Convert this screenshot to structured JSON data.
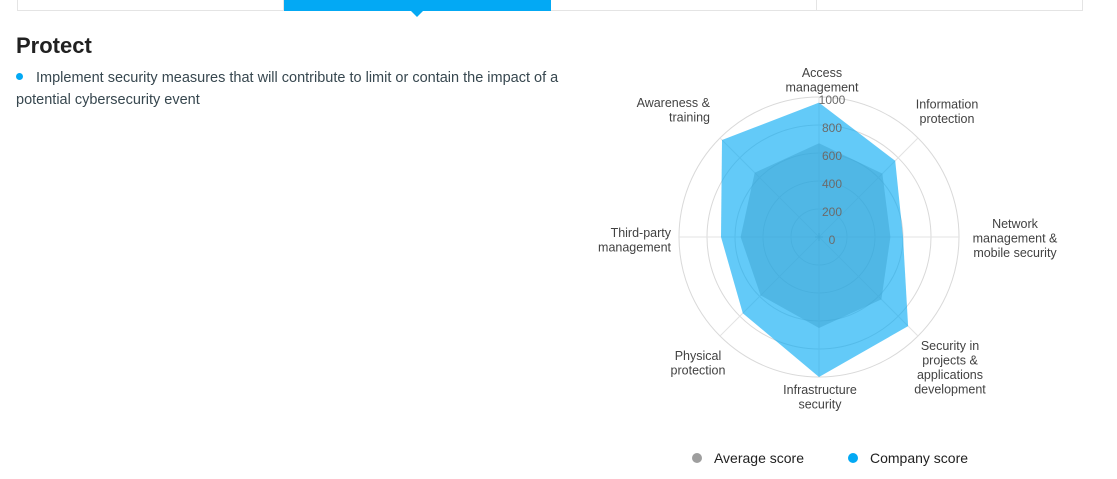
{
  "nav": {
    "tab_count": 4,
    "active_tab_index": 1
  },
  "page": {
    "title": "Protect",
    "description": "Implement security measures that will contribute to limit or contain the impact of a potential cybersecurity event"
  },
  "colors": {
    "accent": "#03a9f4",
    "average_series": "#9e9e9e",
    "company_series": "#03a9f4",
    "grid_line": "#d9d9d9",
    "axis_line": "#e3e3e3",
    "tick_label": "#6b6b6b",
    "category_label": "#424242"
  },
  "chart_data": {
    "type": "radar",
    "title": "",
    "categories": [
      "Access management",
      "Information protection",
      "Network management & mobile security",
      "Security in projects & applications development",
      "Infrastructure security",
      "Physical protection",
      "Third-party management",
      "Awareness & training"
    ],
    "category_label_lines": [
      [
        "Access",
        "management"
      ],
      [
        "Information",
        "protection"
      ],
      [
        "Network",
        "management &",
        "mobile security"
      ],
      [
        "Security in",
        "projects &",
        "applications",
        "development"
      ],
      [
        "Infrastructure",
        "security"
      ],
      [
        "Physical",
        "protection"
      ],
      [
        "Third-party",
        "management"
      ],
      [
        "Awareness &",
        "training"
      ]
    ],
    "series": [
      {
        "name": "Average score",
        "color": "#9e9e9e",
        "values": [
          670,
          640,
          510,
          630,
          650,
          590,
          560,
          650
        ]
      },
      {
        "name": "Company score",
        "color": "#03a9f4",
        "values": [
          960,
          770,
          600,
          900,
          1000,
          770,
          700,
          980
        ]
      }
    ],
    "axis": {
      "min": 0,
      "max": 1000,
      "tick_interval": 200,
      "tick_labels": [
        "0",
        "200",
        "400",
        "600",
        "800",
        "1000"
      ]
    },
    "legend_position": "bottom",
    "grid": "circular"
  }
}
